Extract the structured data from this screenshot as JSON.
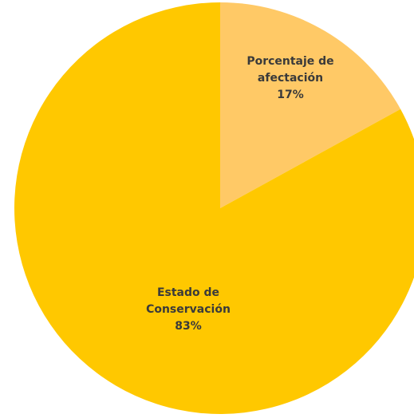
{
  "chart_data": {
    "type": "pie",
    "title": "",
    "start_angle_deg": 0,
    "direction": "clockwise",
    "legend": "none",
    "slices": [
      {
        "label_lines": [
          "Porcentaje de",
          "afectación"
        ],
        "value": 17,
        "value_label": "17%",
        "color": "#FFC966"
      },
      {
        "label_lines": [
          "Estado de",
          "Conservación"
        ],
        "value": 83,
        "value_label": "83%",
        "color": "#FFC800"
      }
    ]
  }
}
